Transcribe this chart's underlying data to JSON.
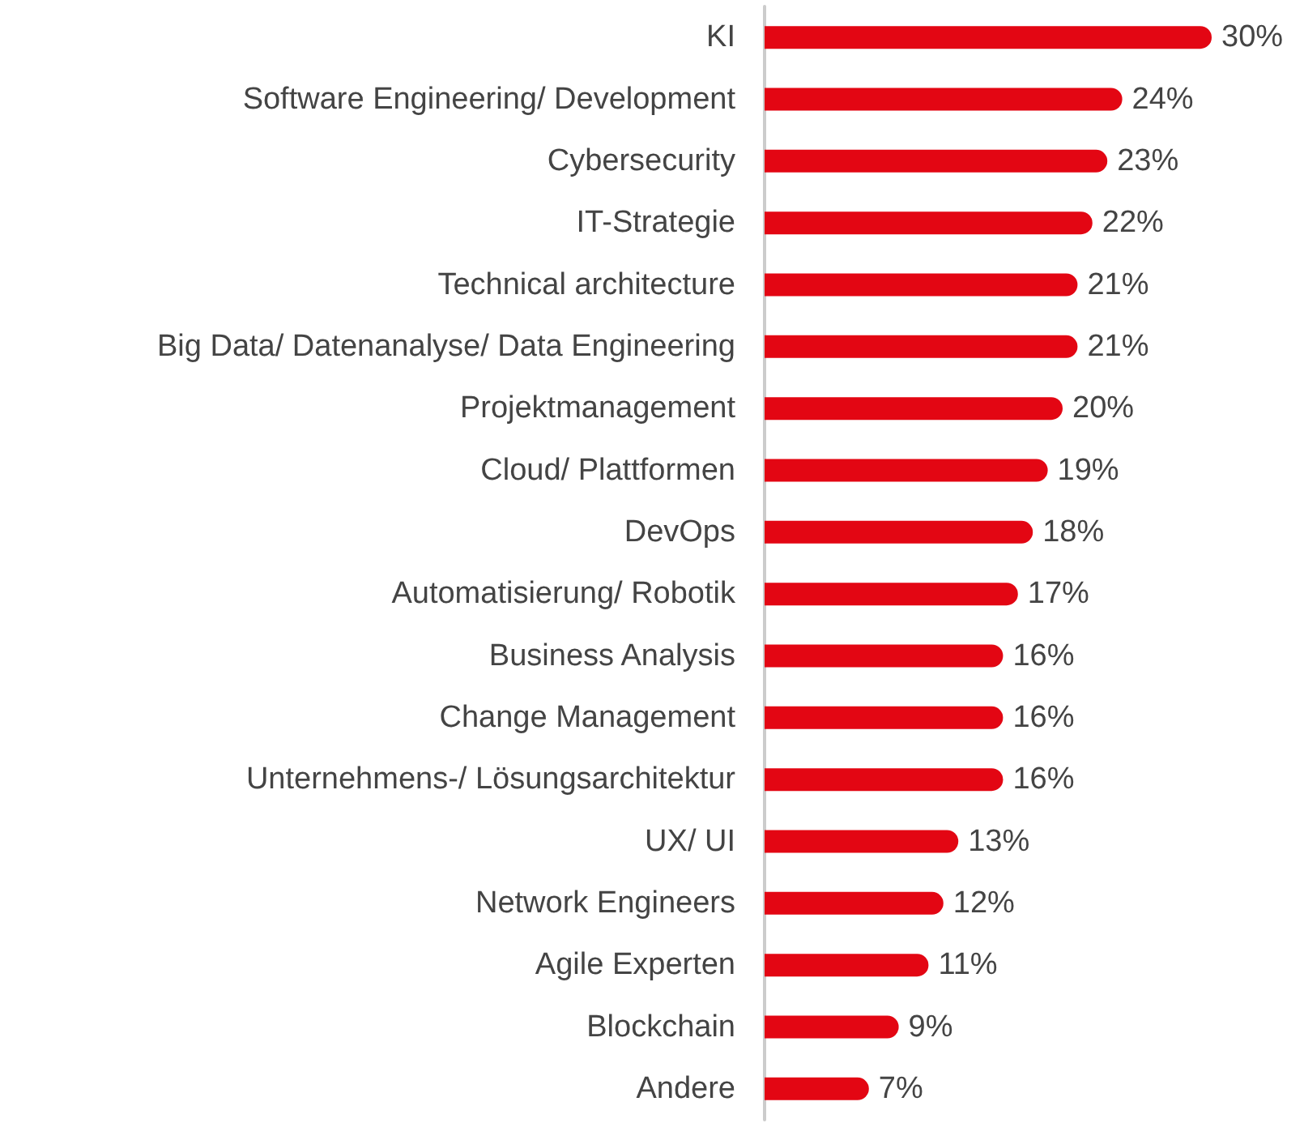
{
  "chart_data": {
    "type": "bar",
    "orientation": "horizontal",
    "categories": [
      "KI",
      "Software Engineering/ Development",
      "Cybersecurity",
      "IT-Strategie",
      "Technical architecture",
      "Big Data/ Datenanalyse/ Data Engineering",
      "Projektmanagement",
      "Cloud/ Plattformen",
      "DevOps",
      "Automatisierung/ Robotik",
      "Business Analysis",
      "Change Management",
      "Unternehmens-/ Lösungsarchitektur",
      "UX/ UI",
      "Network Engineers",
      "Agile Experten",
      "Blockchain",
      "Andere"
    ],
    "values": [
      30,
      24,
      23,
      22,
      21,
      21,
      20,
      19,
      18,
      17,
      16,
      16,
      16,
      13,
      12,
      11,
      9,
      7
    ],
    "value_labels": [
      "30%",
      "24%",
      "23%",
      "22%",
      "21%",
      "21%",
      "20%",
      "19%",
      "18%",
      "17%",
      "16%",
      "16%",
      "16%",
      "13%",
      "12%",
      "11%",
      "9%",
      "7%"
    ],
    "color": "#e30613"
  }
}
